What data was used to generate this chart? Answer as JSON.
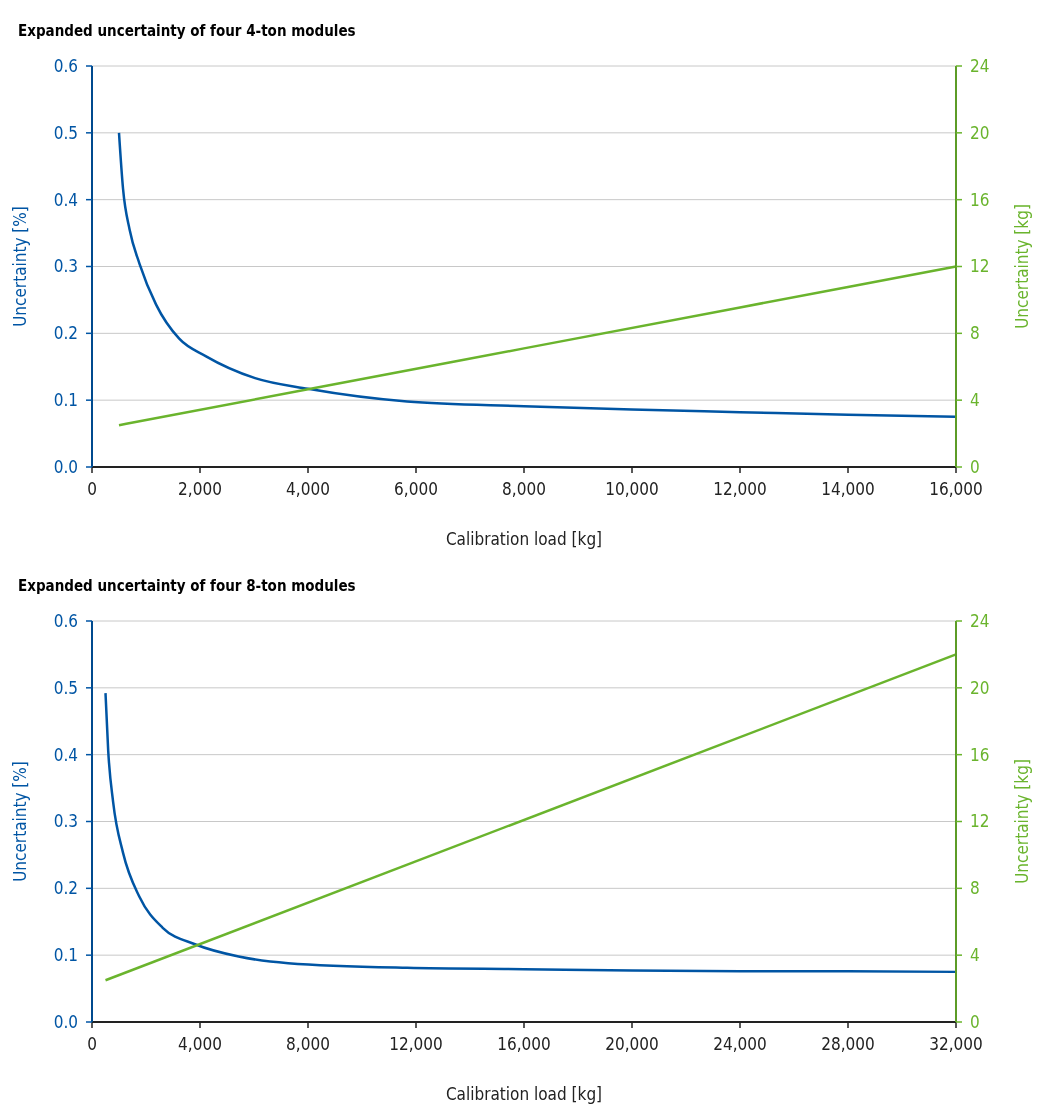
{
  "chart_data": [
    {
      "type": "line",
      "title": "Expanded uncertainty of four 4-ton modules",
      "xlabel": "Calibration load [kg]",
      "ylabel": "Uncertainty [%]",
      "y2label": "Uncertainty [kg]",
      "xlim": [
        0,
        16000
      ],
      "xticks": [
        0,
        {
          "value": 2000,
          "label": "2,000"
        },
        {
          "value": 4000,
          "label": "4,000"
        },
        {
          "value": 6000,
          "label": "6,000"
        },
        {
          "value": 8000,
          "label": "8,000"
        },
        {
          "value": 10000,
          "label": "10,000"
        },
        {
          "value": 12000,
          "label": "12,000"
        },
        {
          "value": 14000,
          "label": "14,000"
        },
        {
          "value": 16000,
          "label": "16,000"
        }
      ],
      "ylim": [
        0,
        0.6
      ],
      "yticks": [
        {
          "value": 0,
          "label": "0.0"
        },
        0.1,
        0.2,
        0.3,
        0.4,
        0.5,
        0.6
      ],
      "y2lim": [
        0,
        24
      ],
      "y2ticks": [
        0,
        4,
        8,
        12,
        16,
        20,
        24
      ],
      "grid": "y",
      "series": [
        {
          "color": "#0055a4",
          "x": [
            500,
            575,
            697,
            880,
            1187,
            1615,
            2104,
            3021,
            4000,
            5835,
            8000,
            10000,
            12000,
            14000,
            16000
          ],
          "values": [
            0.5,
            0.416,
            0.355,
            0.304,
            0.243,
            0.192,
            0.166,
            0.133,
            0.117,
            0.098,
            0.091,
            0.086,
            0.082,
            0.078,
            0.075
          ]
        },
        {
          "color": "#6ab42d",
          "axis": "y2",
          "x": [
            500,
            4000,
            8000,
            12000,
            16000
          ],
          "values": [
            2.5,
            4.65,
            7.1,
            9.55,
            12
          ]
        }
      ]
    },
    {
      "type": "line",
      "title": "Expanded uncertainty of four 8-ton modules",
      "xlabel": "Calibration load [kg]",
      "ylabel": "Uncertainty [%]",
      "y2label": "Uncertainty [kg]",
      "xlim": [
        0,
        32000
      ],
      "xticks": [
        0,
        {
          "value": 4000,
          "label": "4,000"
        },
        {
          "value": 8000,
          "label": "8,000"
        },
        {
          "value": 12000,
          "label": "12,000"
        },
        {
          "value": 16000,
          "label": "16,000"
        },
        {
          "value": 20000,
          "label": "20,000"
        },
        {
          "value": 24000,
          "label": "24,000"
        },
        {
          "value": 28000,
          "label": "28,000"
        },
        {
          "value": 32000,
          "label": "32,000"
        }
      ],
      "ylim": [
        0,
        0.6
      ],
      "yticks": [
        {
          "value": 0,
          "label": "0.0"
        },
        0.1,
        0.2,
        0.3,
        0.4,
        0.5,
        0.6
      ],
      "y2lim": [
        0,
        24
      ],
      "y2ticks": [
        0,
        4,
        8,
        12,
        16,
        20,
        24
      ],
      "grid": "y",
      "series": [
        {
          "color": "#0055a4",
          "x": [
            500,
            600,
            783,
            1150,
            1761,
            2618,
            3840,
            5431,
            7266,
            11670,
            16000,
            20000,
            24000,
            28000,
            32000
          ],
          "values": [
            0.492,
            0.406,
            0.329,
            0.253,
            0.187,
            0.141,
            0.116,
            0.098,
            0.088,
            0.081,
            0.079,
            0.077,
            0.076,
            0.076,
            0.075
          ]
        },
        {
          "color": "#6ab42d",
          "axis": "y2",
          "x": [
            500,
            32000
          ],
          "values": [
            2.5,
            22
          ]
        }
      ]
    }
  ]
}
